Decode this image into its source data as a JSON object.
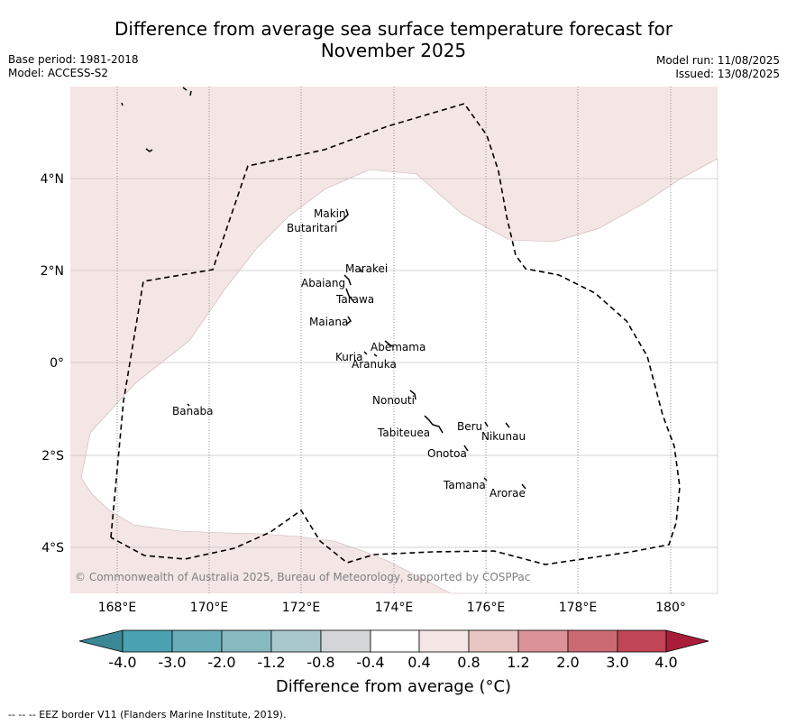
{
  "title_line1": "Difference from average sea surface temperature forecast for",
  "title_line2": "November 2025",
  "base_period": "Base period: 1981-2018",
  "model": "Model: ACCESS-S2",
  "model_run": "Model run: 11/08/2025",
  "issued": "Issued: 13/08/2025",
  "copyright": "© Commonwealth of Australia 2025, Bureau of Meteorology, supported by COSPPac",
  "lon_ticks": [
    "168°E",
    "170°E",
    "172°E",
    "174°E",
    "176°E",
    "178°E",
    "180°"
  ],
  "lat_ticks": [
    "4°N",
    "2°N",
    "0°",
    "2°S",
    "4°S"
  ],
  "islands": [
    "Makin",
    "Butaritari",
    "Marakei",
    "Abaiang",
    "Tarawa",
    "Maiana",
    "Abemama",
    "Kuria",
    "Aranuka",
    "Nonouti",
    "Banaba",
    "Tabiteuea",
    "Beru",
    "Nikunau",
    "Onotoa",
    "Tamana",
    "Arorae"
  ],
  "colorbar": {
    "ticks": [
      "-4.0",
      "-3.0",
      "-2.0",
      "-1.2",
      "-0.8",
      "-0.4",
      "0.4",
      "0.8",
      "1.2",
      "2.0",
      "3.0",
      "4.0"
    ],
    "colors": [
      "#3b8796",
      "#4aa2b0",
      "#69adb9",
      "#87b9c1",
      "#a9c8cc",
      "#d3d5d6",
      "#ffffff",
      "#f4e6e5",
      "#e9c6c2",
      "#db9298",
      "#cc6a73",
      "#c04556",
      "#a81e3a"
    ],
    "title": "Difference from average (°C)"
  },
  "field_colors": {
    "warm_anomaly": "#f4e6e5",
    "neutral": "#ffffff"
  },
  "footer": "--  --  -- EEZ border V11 (Flanders Marine Institute, 2019)."
}
